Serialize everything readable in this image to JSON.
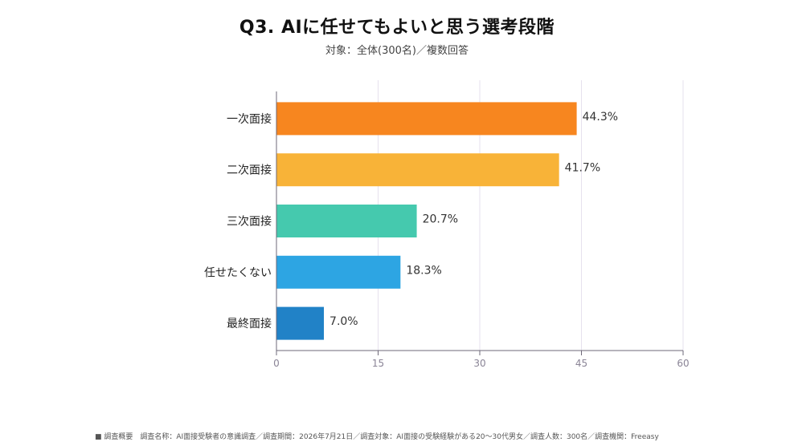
{
  "title": "Q3. AIに任せてもよいと思う選考段階",
  "subtitle": "対象：全体(300名)／複数回答",
  "footer": "■ 調査概要　調査名称：AI面接受験者の意識調査／調査期間：2026年7月21日／調査対象：AI面接の受験経験がある20～30代男女／調査人数：300名／調査機関：Freeasy",
  "chart_data": {
    "type": "bar",
    "orientation": "horizontal",
    "title": "Q3. AIに任せてもよいと思う選考段階",
    "subtitle": "対象：全体(300名)／複数回答",
    "categories": [
      "一次面接",
      "二次面接",
      "三次面接",
      "任せたくない",
      "最終面接"
    ],
    "values": [
      44.3,
      41.7,
      20.7,
      18.3,
      7.0
    ],
    "value_labels": [
      "44.3%",
      "41.7%",
      "20.7%",
      "18.3%",
      "7.0%"
    ],
    "colors": [
      "#F7861F",
      "#F8B338",
      "#45C9AE",
      "#2DA5E3",
      "#2182C7"
    ],
    "xlim": [
      0,
      60
    ],
    "xticks": [
      0,
      15,
      30,
      45,
      60
    ],
    "grid": true,
    "legend": "none"
  }
}
